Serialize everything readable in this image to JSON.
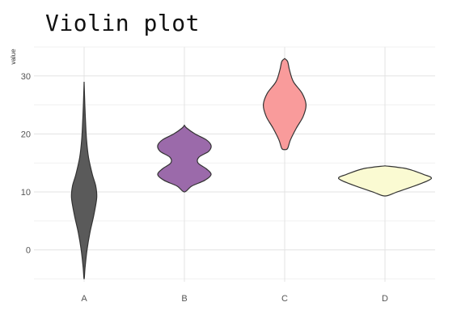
{
  "chart_data": {
    "type": "violin",
    "title": "Violin plot",
    "xlabel": "",
    "ylabel": "value",
    "categories": [
      "A",
      "B",
      "C",
      "D"
    ],
    "yticks": [
      0,
      10,
      20,
      30
    ],
    "ylim": [
      -5.5,
      35
    ],
    "grid": true,
    "legend": "none",
    "violins": [
      {
        "category": "A",
        "color": "#5a5a5a",
        "profile": [
          [
            -5,
            0.0
          ],
          [
            -3,
            0.02
          ],
          [
            0,
            0.06
          ],
          [
            3,
            0.12
          ],
          [
            6,
            0.2
          ],
          [
            9,
            0.26
          ],
          [
            11,
            0.24
          ],
          [
            13,
            0.17
          ],
          [
            16,
            0.09
          ],
          [
            19,
            0.05
          ],
          [
            22,
            0.03
          ],
          [
            25,
            0.015
          ],
          [
            29,
            0.0
          ]
        ]
      },
      {
        "category": "B",
        "color": "#9b6aaa",
        "profile": [
          [
            10,
            0.0
          ],
          [
            11,
            0.15
          ],
          [
            12,
            0.42
          ],
          [
            13,
            0.55
          ],
          [
            14,
            0.45
          ],
          [
            15,
            0.28
          ],
          [
            16,
            0.3
          ],
          [
            17,
            0.5
          ],
          [
            18,
            0.55
          ],
          [
            19,
            0.45
          ],
          [
            20,
            0.22
          ],
          [
            21,
            0.05
          ],
          [
            21.5,
            0.0
          ]
        ]
      },
      {
        "category": "C",
        "color": "#f99b9b",
        "profile": [
          [
            17.3,
            0.0
          ],
          [
            17.5,
            0.06
          ],
          [
            19,
            0.12
          ],
          [
            21,
            0.24
          ],
          [
            23,
            0.38
          ],
          [
            25,
            0.44
          ],
          [
            27,
            0.36
          ],
          [
            29,
            0.18
          ],
          [
            31,
            0.1
          ],
          [
            32.5,
            0.06
          ],
          [
            33,
            0.0
          ]
        ]
      },
      {
        "category": "D",
        "color": "#fafad2",
        "profile": [
          [
            9.3,
            0.0
          ],
          [
            10,
            0.25
          ],
          [
            11,
            0.6
          ],
          [
            12,
            0.9
          ],
          [
            12.5,
            0.95
          ],
          [
            13,
            0.8
          ],
          [
            14,
            0.45
          ],
          [
            14.5,
            0.0
          ]
        ]
      }
    ]
  }
}
